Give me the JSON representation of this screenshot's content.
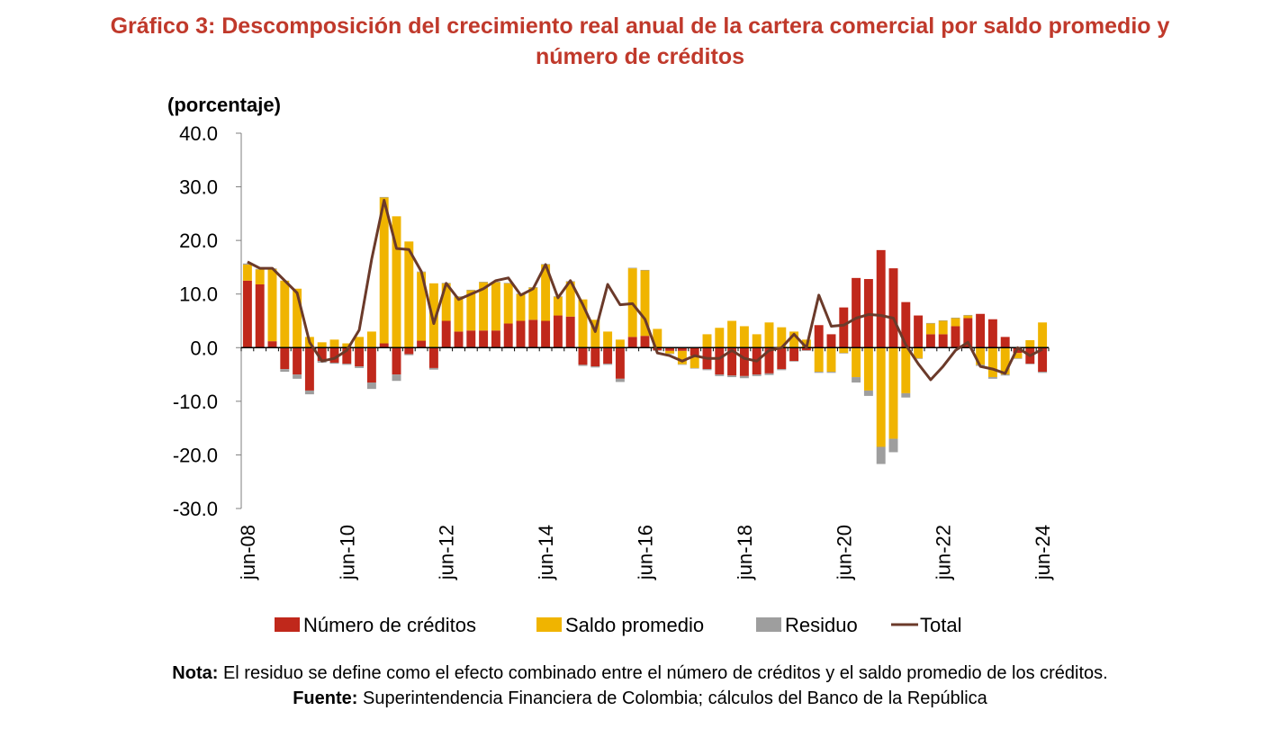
{
  "title_line1": "Gráfico 3: Descomposición del crecimiento real anual de la cartera comercial por saldo promedio y",
  "title_line2": "número de créditos",
  "note_label": "Nota:",
  "note_text": "El residuo se define como el efecto combinado entre el número de créditos y el saldo promedio de los créditos.",
  "source_label": "Fuente:",
  "source_text": "Superintendencia Financiera de Colombia; cálculos del Banco de la República",
  "colors": {
    "numero": "#c0281b",
    "saldo": "#f0b400",
    "residuo": "#9e9e9e",
    "total": "#6b3a2a"
  },
  "chart_data": {
    "type": "bar",
    "stacked": true,
    "ylabel": "(porcentaje)",
    "ylim": [
      -30,
      40
    ],
    "yticks": [
      "40.0",
      "30.0",
      "20.0",
      "10.0",
      "0.0",
      "-10.0",
      "-20.0",
      "-30.0"
    ],
    "xtick_labels": [
      "jun-08",
      "jun-10",
      "jun-12",
      "jun-14",
      "jun-16",
      "jun-18",
      "jun-20",
      "jun-22",
      "jun-24"
    ],
    "legend": [
      "Número de créditos",
      "Saldo promedio",
      "Residuo",
      "Total"
    ],
    "categories": [
      "jun-08",
      "sep-08",
      "dic-08",
      "mar-09",
      "jun-09",
      "sep-09",
      "dic-09",
      "mar-10",
      "jun-10",
      "sep-10",
      "dic-10",
      "mar-11",
      "jun-11",
      "sep-11",
      "dic-11",
      "mar-12",
      "jun-12",
      "sep-12",
      "dic-12",
      "mar-13",
      "jun-13",
      "sep-13",
      "dic-13",
      "mar-14",
      "jun-14",
      "sep-14",
      "dic-14",
      "mar-15",
      "jun-15",
      "sep-15",
      "dic-15",
      "mar-16",
      "jun-16",
      "sep-16",
      "dic-16",
      "mar-17",
      "jun-17",
      "sep-17",
      "dic-17",
      "mar-18",
      "jun-18",
      "sep-18",
      "dic-18",
      "mar-19",
      "jun-19",
      "sep-19",
      "dic-19",
      "mar-20",
      "jun-20",
      "sep-20",
      "dic-20",
      "mar-21",
      "jun-21",
      "sep-21",
      "dic-21",
      "mar-22",
      "jun-22",
      "sep-22",
      "dic-22",
      "mar-23",
      "jun-23",
      "sep-23",
      "dic-23",
      "mar-24",
      "jun-24"
    ],
    "series": [
      {
        "name": "Número de créditos",
        "values": [
          12.5,
          11.8,
          1.2,
          -4.0,
          -5.0,
          -8.0,
          -2.5,
          -2.8,
          -3.0,
          -3.5,
          -6.5,
          0.8,
          -5.0,
          -1.2,
          1.3,
          -3.8,
          5.0,
          3.0,
          3.2,
          3.2,
          3.2,
          4.5,
          5.0,
          5.2,
          5.0,
          6.0,
          5.8,
          -3.2,
          -3.5,
          -3.0,
          -5.8,
          2.0,
          2.2,
          -0.5,
          -0.6,
          -0.6,
          -1.5,
          -4.0,
          -5.0,
          -5.2,
          -5.3,
          -5.0,
          -4.8,
          -4.0,
          -2.5,
          -0.5,
          4.2,
          2.5,
          7.5,
          13.0,
          12.8,
          18.2,
          14.8,
          8.5,
          6.0,
          2.5,
          2.5,
          4.0,
          5.5,
          6.3,
          5.3,
          2.0,
          -1.0,
          -3.0,
          -4.5
        ]
      },
      {
        "name": "Saldo promedio",
        "values": [
          3.0,
          2.8,
          13.5,
          12.5,
          11.0,
          2.0,
          1.0,
          1.5,
          0.8,
          2.0,
          3.0,
          27.2,
          24.5,
          19.8,
          12.8,
          12.0,
          7.0,
          6.5,
          7.5,
          9.0,
          9.0,
          7.5,
          5.0,
          6.0,
          10.5,
          3.5,
          6.5,
          9.0,
          5.2,
          3.0,
          1.5,
          12.8,
          12.2,
          3.5,
          -0.5,
          -2.5,
          -2.3,
          2.5,
          3.7,
          5.0,
          4.0,
          2.5,
          4.7,
          3.8,
          3.0,
          1.5,
          -4.5,
          -4.5,
          -1.0,
          -5.5,
          -8.0,
          -18.5,
          -17.0,
          -8.5,
          -2.0,
          2.0,
          2.5,
          1.5,
          0.5,
          -3.2,
          -5.5,
          -5.0,
          -1.0,
          1.4,
          4.7
        ]
      },
      {
        "name": "Residuo",
        "values": [
          0.2,
          0.1,
          0.1,
          -0.5,
          -0.8,
          -0.7,
          -0.3,
          -0.2,
          -0.2,
          -0.3,
          -1.2,
          0.1,
          -1.2,
          -0.2,
          0.1,
          -0.3,
          0.1,
          0.1,
          0.1,
          0.1,
          0.1,
          0.1,
          0.1,
          0.1,
          0.1,
          0.1,
          0.1,
          -0.2,
          -0.2,
          -0.2,
          -0.6,
          0.1,
          0.1,
          -0.1,
          -0.1,
          -0.1,
          -0.1,
          -0.2,
          -0.3,
          -0.3,
          -0.4,
          -0.3,
          -0.3,
          -0.2,
          -0.1,
          -0.1,
          -0.2,
          -0.2,
          -0.1,
          -1.0,
          -1.0,
          -3.2,
          -2.5,
          -0.8,
          -0.1,
          0.1,
          0.1,
          0.1,
          0.1,
          -0.2,
          -0.3,
          -0.2,
          -0.1,
          -0.1,
          -0.2
        ]
      },
      {
        "name": "Total",
        "values": [
          16.0,
          14.8,
          14.8,
          12.5,
          10.2,
          1.0,
          -2.5,
          -2.0,
          -0.5,
          3.3,
          16.5,
          27.5,
          18.5,
          18.3,
          14.2,
          4.5,
          12.0,
          9.0,
          10.0,
          11.0,
          12.5,
          13.0,
          9.8,
          11.0,
          15.5,
          9.3,
          12.5,
          8.0,
          3.0,
          11.8,
          8.0,
          8.2,
          5.3,
          -1.0,
          -1.5,
          -2.5,
          -1.5,
          -2.0,
          -2.0,
          -0.5,
          -2.0,
          -2.5,
          -0.5,
          0.0,
          2.5,
          0.0,
          9.8,
          4.0,
          4.2,
          5.5,
          6.2,
          6.0,
          5.5,
          0.5,
          -3.0,
          -6.0,
          -3.5,
          -0.5,
          1.0,
          -3.5,
          -4.0,
          -4.8,
          0.0,
          -1.5,
          -0.3
        ]
      }
    ]
  }
}
